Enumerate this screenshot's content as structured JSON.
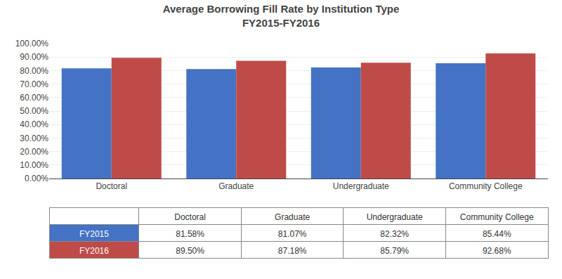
{
  "chart_data": {
    "type": "bar",
    "title": "Average Borrowing Fill Rate by Institution Type",
    "subtitle": "FY2015-FY2016",
    "categories": [
      "Doctoral",
      "Graduate",
      "Undergraduate",
      "Community College"
    ],
    "series": [
      {
        "name": "FY2015",
        "color": "#4472C4",
        "values": [
          0.8158,
          0.8107,
          0.8232,
          0.8544
        ],
        "value_labels": [
          "81.58%",
          "81.07%",
          "82.32%",
          "85.44%"
        ]
      },
      {
        "name": "FY2016",
        "color": "#BE4B48",
        "values": [
          0.895,
          0.8718,
          0.8579,
          0.9268
        ],
        "value_labels": [
          "89.50%",
          "87.18%",
          "85.79%",
          "92.68%"
        ]
      }
    ],
    "ylim": [
      0.0,
      1.0
    ],
    "yticks": [
      {
        "value": 0.0,
        "label": "0.00%"
      },
      {
        "value": 0.1,
        "label": "10.00%"
      },
      {
        "value": 0.2,
        "label": "20.00%"
      },
      {
        "value": 0.3,
        "label": "30.00%"
      },
      {
        "value": 0.4,
        "label": "40.00%"
      },
      {
        "value": 0.5,
        "label": "50.00%"
      },
      {
        "value": 0.6,
        "label": "60.00%"
      },
      {
        "value": 0.7,
        "label": "70.00%"
      },
      {
        "value": 0.8,
        "label": "80.00%"
      },
      {
        "value": 0.9,
        "label": "90.00%"
      },
      {
        "value": 1.0,
        "label": "100.00%"
      }
    ],
    "grid": true
  }
}
